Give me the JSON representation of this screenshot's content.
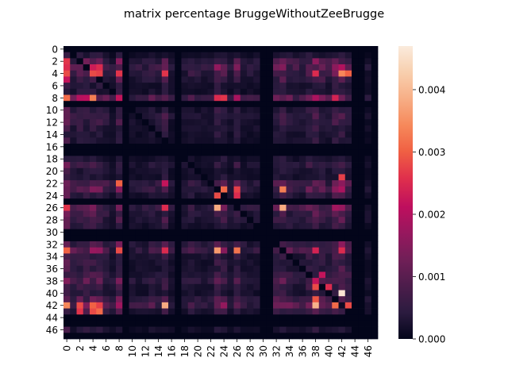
{
  "chart_data": {
    "type": "heatmap",
    "title": "matrix percentage BruggeWithoutZeeBrugge",
    "n_rows": 48,
    "n_cols": 48,
    "x_tick_labels": [
      "0",
      "2",
      "4",
      "6",
      "8",
      "10",
      "12",
      "14",
      "16",
      "18",
      "20",
      "22",
      "24",
      "26",
      "28",
      "30",
      "32",
      "34",
      "36",
      "38",
      "40",
      "42",
      "44",
      "46"
    ],
    "y_tick_labels": [
      "0",
      "2",
      "4",
      "6",
      "8",
      "10",
      "12",
      "14",
      "16",
      "18",
      "20",
      "22",
      "24",
      "26",
      "28",
      "30",
      "32",
      "34",
      "36",
      "38",
      "40",
      "42",
      "44",
      "46"
    ],
    "colorbar": {
      "min": 0.0,
      "max": 0.0047,
      "tick_values": [
        0.0,
        0.001,
        0.002,
        0.003,
        0.004
      ],
      "tick_labels": [
        "0.000",
        "0.001",
        "0.002",
        "0.003",
        "0.004"
      ]
    },
    "grid": false,
    "colormap": "rocket",
    "colors": [
      "#03051a",
      "#2b1b3f",
      "#4c1d4b",
      "#701f57",
      "#96185e",
      "#be0f5e",
      "#e0304c",
      "#f06043",
      "#f6895b",
      "#f7ae86",
      "#f8cfae",
      "#faebdd"
    ],
    "base_value": 0.00015,
    "zero_rows": [
      0,
      9,
      16,
      17,
      25,
      30,
      31,
      44,
      45,
      47
    ],
    "zero_cols": [
      9,
      17,
      30,
      31,
      44,
      45,
      47
    ],
    "row_weights": {
      "2": 2.5,
      "3": 3,
      "4": 2.5,
      "5": 2,
      "8": 4,
      "10": 1.3,
      "11": 1.8,
      "12": 1.5,
      "13": 1.3,
      "19": 1.6,
      "22": 2.5,
      "23": 2.8,
      "24": 1.5,
      "26": 3,
      "27": 2,
      "28": 1.8,
      "29": 1.3,
      "32": 2.2,
      "33": 3.2,
      "34": 1.5,
      "35": 1.4,
      "36": 1.4,
      "37": 1.8,
      "38": 2.4,
      "39": 1.6,
      "40": 1.3,
      "41": 2.4,
      "42": 3.5,
      "43": 1.6,
      "46": 1
    },
    "col_weights": {
      "0": 4,
      "1": 1.8,
      "2": 2.5,
      "3": 2.5,
      "4": 2.5,
      "5": 2.4,
      "6": 1.6,
      "8": 3,
      "13": 1.4,
      "14": 1.3,
      "15": 2.5,
      "19": 1.4,
      "23": 2.6,
      "24": 2.2,
      "26": 2.2,
      "32": 2,
      "33": 2.4,
      "34": 1.8,
      "35": 1.5,
      "36": 1.4,
      "37": 2.2,
      "38": 3,
      "39": 2,
      "40": 1.5,
      "41": 2.8,
      "42": 3.4,
      "43": 2,
      "46": 0.7
    },
    "cells": [
      [
        8,
        0,
        0.0031
      ],
      [
        8,
        4,
        0.0033
      ],
      [
        8,
        8,
        0.0022
      ],
      [
        8,
        23,
        0.0025
      ],
      [
        8,
        24,
        0.0026
      ],
      [
        8,
        26,
        0.0019
      ],
      [
        3,
        4,
        0.0023
      ],
      [
        4,
        4,
        0.0028
      ],
      [
        4,
        5,
        0.0027
      ],
      [
        3,
        5,
        0.0025
      ],
      [
        4,
        8,
        0.0026
      ],
      [
        22,
        8,
        0.003
      ],
      [
        23,
        24,
        0.0031
      ],
      [
        24,
        23,
        0.0028
      ],
      [
        23,
        26,
        0.0027
      ],
      [
        24,
        26,
        0.0025
      ],
      [
        23,
        33,
        0.0033
      ],
      [
        26,
        23,
        0.0038
      ],
      [
        26,
        33,
        0.0038
      ],
      [
        26,
        0,
        0.0026
      ],
      [
        33,
        0,
        0.003
      ],
      [
        33,
        15,
        0.0025
      ],
      [
        33,
        23,
        0.0036
      ],
      [
        33,
        26,
        0.0032
      ],
      [
        33,
        8,
        0.0028
      ],
      [
        39,
        38,
        0.0028
      ],
      [
        39,
        40,
        0.0025
      ],
      [
        38,
        38,
        0.0022
      ],
      [
        37,
        39,
        0.0022
      ],
      [
        40,
        42,
        0.0046
      ],
      [
        41,
        38,
        0.0029
      ],
      [
        42,
        38,
        0.0039
      ],
      [
        42,
        0,
        0.0034
      ],
      [
        42,
        15,
        0.0038
      ],
      [
        42,
        41,
        0.0031
      ],
      [
        42,
        43,
        0.0028
      ],
      [
        42,
        4,
        0.003
      ],
      [
        42,
        2,
        0.0028
      ],
      [
        42,
        5,
        0.0027
      ],
      [
        42,
        42,
        0.0001
      ],
      [
        43,
        4,
        0.0028
      ],
      [
        43,
        5,
        0.0031
      ],
      [
        43,
        2,
        0.0026
      ],
      [
        4,
        42,
        0.0034
      ],
      [
        4,
        43,
        0.003
      ],
      [
        4,
        38,
        0.0025
      ],
      [
        4,
        15,
        0.0026
      ],
      [
        4,
        0,
        0.0028
      ],
      [
        21,
        42,
        0.0027
      ],
      [
        22,
        15,
        0.0022
      ],
      [
        26,
        15,
        0.0025
      ],
      [
        33,
        38,
        0.0024
      ],
      [
        33,
        42,
        0.0025
      ],
      [
        3,
        42,
        0.002
      ],
      [
        5,
        0,
        0.0022
      ],
      [
        3,
        0,
        0.0025
      ],
      [
        2,
        0,
        0.0026
      ]
    ]
  }
}
